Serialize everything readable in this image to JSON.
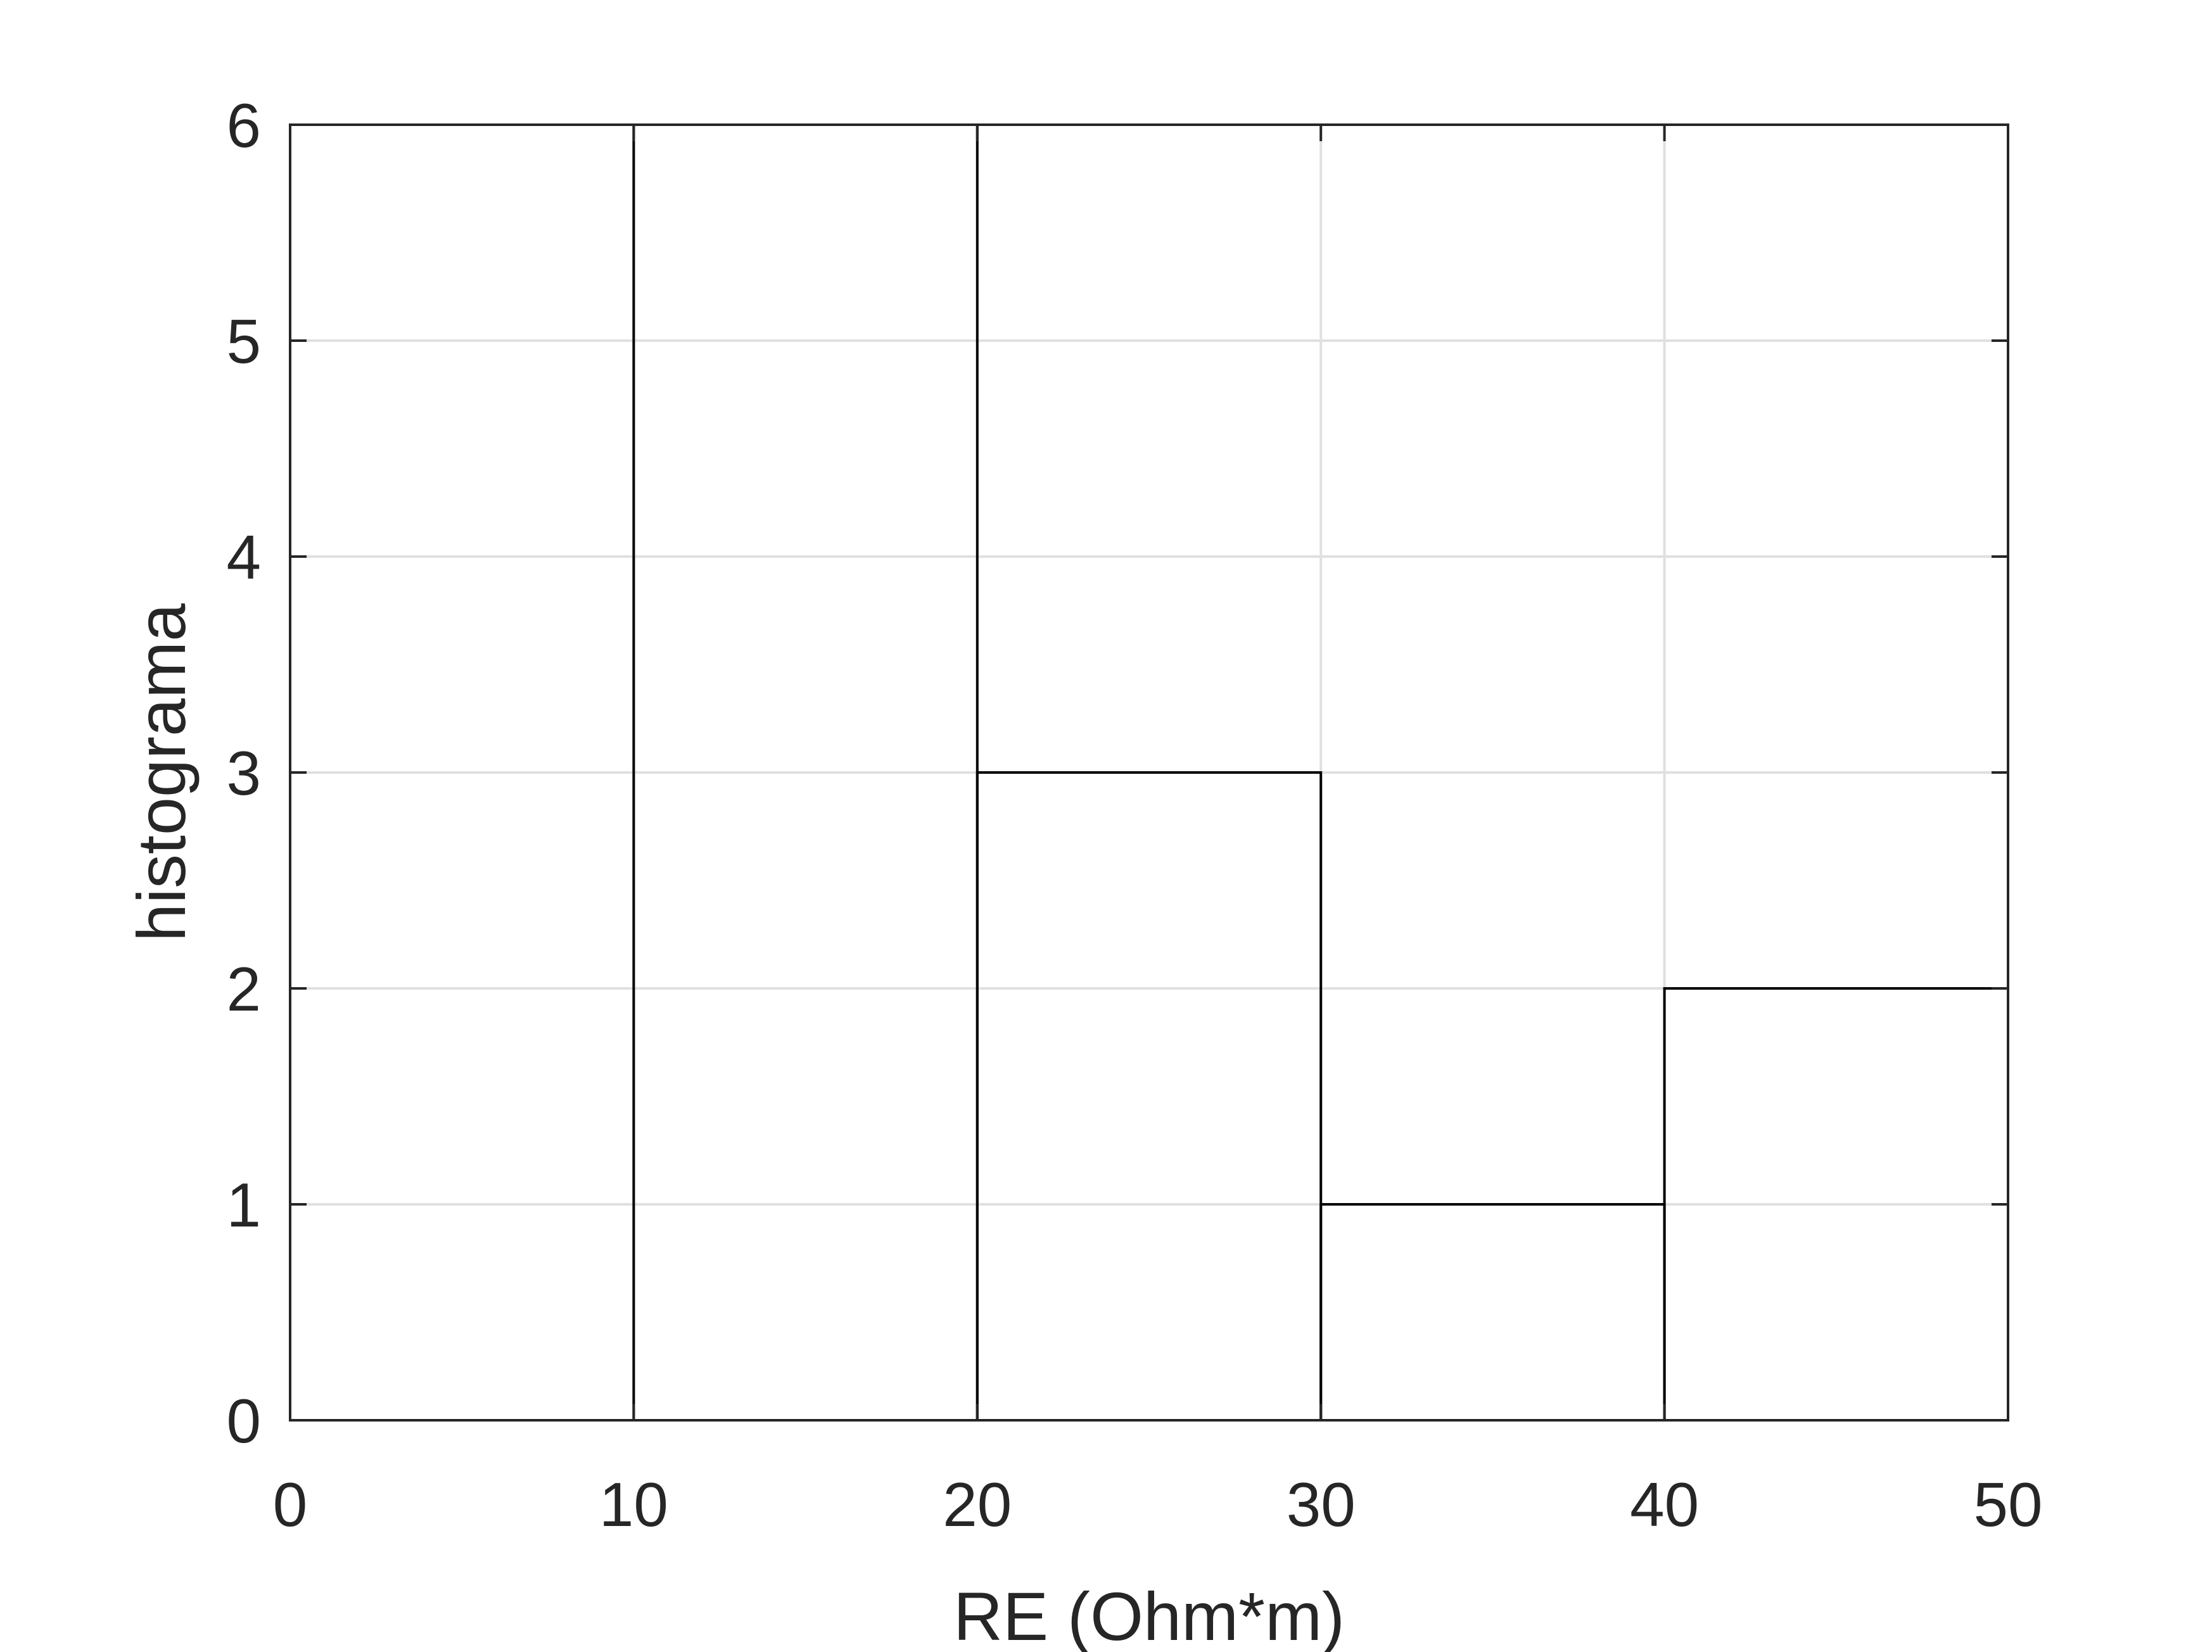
{
  "chart_data": {
    "type": "bar",
    "style": "stairs",
    "bin_edges": [
      0,
      10,
      20,
      30,
      40,
      50
    ],
    "values": [
      0,
      6,
      3,
      1,
      2
    ],
    "xlabel": "RE (Ohm*m)",
    "ylabel": "histograma",
    "xlim": [
      0,
      50
    ],
    "ylim": [
      0,
      6
    ],
    "xticks": [
      0,
      10,
      20,
      30,
      40,
      50
    ],
    "yticks": [
      0,
      1,
      2,
      3,
      4,
      5,
      6
    ],
    "grid": true,
    "colors": {
      "line": "#000000",
      "grid": "#e0e0e0",
      "axis": "#262626",
      "text": "#262626"
    }
  }
}
